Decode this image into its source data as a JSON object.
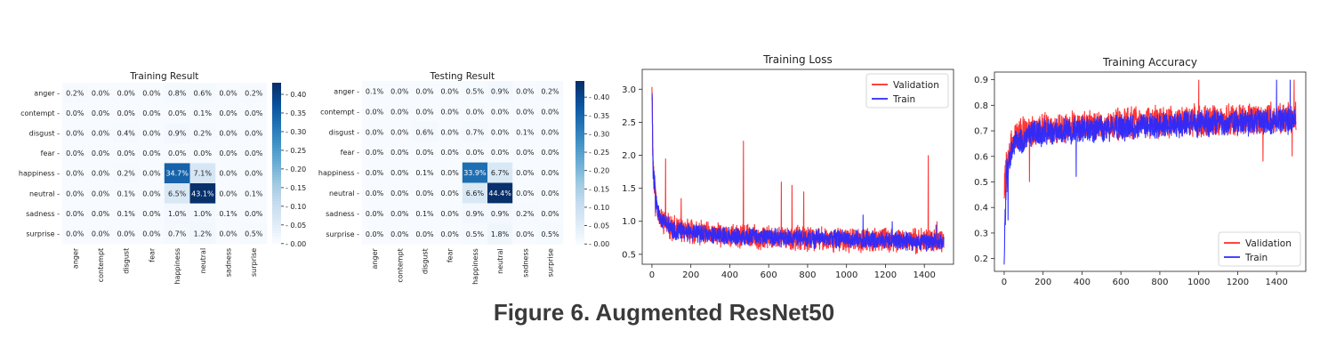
{
  "figure_caption": "Figure 6. Augmented ResNet50",
  "colors": {
    "validation": "#ff2a2a",
    "train": "#2a2aff",
    "heat_low": "#f7fbff",
    "heat_high": "#08306b"
  },
  "chart_data": [
    {
      "type": "heatmap",
      "title": "Training Result",
      "labels": [
        "anger",
        "contempt",
        "disgust",
        "fear",
        "happiness",
        "neutral",
        "sadness",
        "surprise"
      ],
      "cells": [
        [
          "0.2%",
          "0.0%",
          "0.0%",
          "0.0%",
          "0.8%",
          "0.6%",
          "0.0%",
          "0.2%"
        ],
        [
          "0.0%",
          "0.0%",
          "0.0%",
          "0.0%",
          "0.0%",
          "0.1%",
          "0.0%",
          "0.0%"
        ],
        [
          "0.0%",
          "0.0%",
          "0.4%",
          "0.0%",
          "0.9%",
          "0.2%",
          "0.0%",
          "0.0%"
        ],
        [
          "0.0%",
          "0.0%",
          "0.0%",
          "0.0%",
          "0.0%",
          "0.0%",
          "0.0%",
          "0.0%"
        ],
        [
          "0.0%",
          "0.0%",
          "0.2%",
          "0.0%",
          "34.7%",
          "7.1%",
          "0.0%",
          "0.0%"
        ],
        [
          "0.0%",
          "0.0%",
          "0.1%",
          "0.0%",
          "6.5%",
          "43.1%",
          "0.0%",
          "0.1%"
        ],
        [
          "0.0%",
          "0.0%",
          "0.1%",
          "0.0%",
          "1.0%",
          "1.0%",
          "0.1%",
          "0.0%"
        ],
        [
          "0.0%",
          "0.0%",
          "0.0%",
          "0.0%",
          "0.7%",
          "1.2%",
          "0.0%",
          "0.5%"
        ]
      ],
      "colorbar": {
        "ticks": [
          "0.00",
          "0.05",
          "0.10",
          "0.15",
          "0.20",
          "0.25",
          "0.30",
          "0.35",
          "0.40"
        ],
        "max": 0.431
      }
    },
    {
      "type": "heatmap",
      "title": "Testing Result",
      "labels": [
        "anger",
        "contempt",
        "disgust",
        "fear",
        "happiness",
        "neutral",
        "sadness",
        "surprise"
      ],
      "cells": [
        [
          "0.1%",
          "0.0%",
          "0.0%",
          "0.0%",
          "0.5%",
          "0.9%",
          "0.0%",
          "0.2%"
        ],
        [
          "0.0%",
          "0.0%",
          "0.0%",
          "0.0%",
          "0.0%",
          "0.0%",
          "0.0%",
          "0.0%"
        ],
        [
          "0.0%",
          "0.0%",
          "0.6%",
          "0.0%",
          "0.7%",
          "0.0%",
          "0.1%",
          "0.0%"
        ],
        [
          "0.0%",
          "0.0%",
          "0.0%",
          "0.0%",
          "0.0%",
          "0.0%",
          "0.0%",
          "0.0%"
        ],
        [
          "0.0%",
          "0.0%",
          "0.1%",
          "0.0%",
          "33.9%",
          "6.7%",
          "0.0%",
          "0.0%"
        ],
        [
          "0.0%",
          "0.0%",
          "0.0%",
          "0.0%",
          "6.6%",
          "44.4%",
          "0.0%",
          "0.0%"
        ],
        [
          "0.0%",
          "0.0%",
          "0.1%",
          "0.0%",
          "0.9%",
          "0.9%",
          "0.2%",
          "0.0%"
        ],
        [
          "0.0%",
          "0.0%",
          "0.0%",
          "0.0%",
          "0.5%",
          "1.8%",
          "0.0%",
          "0.5%"
        ]
      ],
      "colorbar": {
        "ticks": [
          "0.00",
          "0.05",
          "0.10",
          "0.15",
          "0.20",
          "0.25",
          "0.30",
          "0.35",
          "0.40"
        ],
        "max": 0.444
      }
    },
    {
      "type": "line",
      "title": "Training Loss",
      "xlim": [
        -50,
        1550
      ],
      "ylim": [
        0.35,
        3.3
      ],
      "xticks": [
        "0",
        "200",
        "400",
        "600",
        "800",
        "1000",
        "1200",
        "1400"
      ],
      "yticks": [
        "0.5",
        "1.0",
        "1.5",
        "2.0",
        "2.5",
        "3.0"
      ],
      "legend_position": "top-right",
      "series": [
        {
          "name": "Validation",
          "color": "#ff2a2a",
          "trend": [
            [
              0,
              3.2
            ],
            [
              5,
              2.0
            ],
            [
              15,
              1.4
            ],
            [
              40,
              1.05
            ],
            [
              100,
              0.9
            ],
            [
              300,
              0.8
            ],
            [
              600,
              0.75
            ],
            [
              1000,
              0.72
            ],
            [
              1500,
              0.7
            ]
          ],
          "noise": 0.16,
          "spikes": [
            [
              470,
              2.22
            ],
            [
              720,
              1.55
            ],
            [
              780,
              1.45
            ],
            [
              665,
              1.6
            ],
            [
              1420,
              2.0
            ],
            [
              70,
              1.95
            ],
            [
              150,
              1.35
            ],
            [
              1465,
              1.0
            ]
          ]
        },
        {
          "name": "Train",
          "color": "#2a2aff",
          "trend": [
            [
              0,
              3.05
            ],
            [
              5,
              1.8
            ],
            [
              20,
              1.3
            ],
            [
              50,
              1.0
            ],
            [
              120,
              0.85
            ],
            [
              400,
              0.78
            ],
            [
              800,
              0.74
            ],
            [
              1200,
              0.72
            ],
            [
              1500,
              0.68
            ]
          ],
          "noise": 0.12,
          "spikes": [
            [
              1085,
              1.1
            ],
            [
              1235,
              1.0
            ],
            [
              1460,
              0.95
            ]
          ]
        }
      ]
    },
    {
      "type": "line",
      "title": "Training Accuracy",
      "xlim": [
        -50,
        1550
      ],
      "ylim": [
        0.15,
        0.93
      ],
      "xticks": [
        "0",
        "200",
        "400",
        "600",
        "800",
        "1000",
        "1200",
        "1400"
      ],
      "yticks": [
        "0.2",
        "0.3",
        "0.4",
        "0.5",
        "0.6",
        "0.7",
        "0.8",
        "0.9"
      ],
      "legend_position": "bottom-right",
      "series": [
        {
          "name": "Validation",
          "color": "#ff2a2a",
          "trend": [
            [
              0,
              0.5
            ],
            [
              20,
              0.62
            ],
            [
              60,
              0.68
            ],
            [
              200,
              0.71
            ],
            [
              600,
              0.73
            ],
            [
              1000,
              0.74
            ],
            [
              1500,
              0.75
            ]
          ],
          "noise": 0.055,
          "spikes": [
            [
              15,
              0.46
            ],
            [
              130,
              0.5
            ],
            [
              1000,
              0.9
            ],
            [
              1330,
              0.58
            ],
            [
              1480,
              0.6
            ],
            [
              1490,
              0.9
            ]
          ]
        },
        {
          "name": "Train",
          "color": "#2a2aff",
          "trend": [
            [
              0,
              0.19
            ],
            [
              10,
              0.5
            ],
            [
              40,
              0.64
            ],
            [
              150,
              0.69
            ],
            [
              500,
              0.71
            ],
            [
              1000,
              0.73
            ],
            [
              1500,
              0.74
            ]
          ],
          "noise": 0.045,
          "spikes": [
            [
              20,
              0.35
            ],
            [
              370,
              0.52
            ],
            [
              1400,
              0.9
            ],
            [
              1470,
              0.9
            ]
          ]
        }
      ]
    }
  ]
}
